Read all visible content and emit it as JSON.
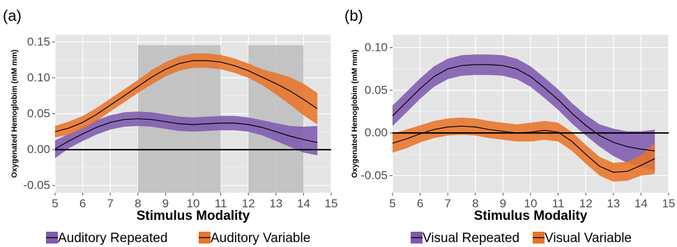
{
  "chart_data": [
    {
      "type": "line",
      "panel_label": "(a)",
      "xlabel": "Stimulus Modality",
      "ylabel": "Oxygenated Hemoglobim (mM mm)",
      "xlim": [
        5,
        15
      ],
      "ylim": [
        -0.06,
        0.16
      ],
      "x_ticks": [
        5,
        6,
        7,
        8,
        9,
        10,
        11,
        12,
        13,
        14,
        15
      ],
      "y_ticks": [
        -0.05,
        0.0,
        0.05,
        0.1,
        0.15
      ],
      "y_tick_labels": [
        "-0.05",
        "0.00",
        "0.05",
        "0.10",
        "0.15"
      ],
      "background": "#e5e5e5",
      "grid": true,
      "zero_line": true,
      "shaded_regions": [
        [
          8,
          11
        ],
        [
          12,
          14
        ]
      ],
      "shaded_color": "#bdbdbd",
      "legend_position": "bottom",
      "series": [
        {
          "name": "Auditory Repeated",
          "color": "#7e5aaf",
          "x": [
            5,
            5.5,
            6,
            6.5,
            7,
            7.5,
            8,
            8.5,
            9,
            9.5,
            10,
            10.5,
            11,
            11.5,
            12,
            12.5,
            13,
            13.5,
            14,
            14.5
          ],
          "y": [
            0.001,
            0.012,
            0.022,
            0.031,
            0.038,
            0.042,
            0.043,
            0.042,
            0.039,
            0.036,
            0.035,
            0.036,
            0.037,
            0.037,
            0.035,
            0.031,
            0.025,
            0.019,
            0.014,
            0.01
          ],
          "lower": [
            -0.012,
            0.002,
            0.012,
            0.021,
            0.028,
            0.032,
            0.033,
            0.032,
            0.029,
            0.026,
            0.025,
            0.026,
            0.027,
            0.027,
            0.025,
            0.02,
            0.012,
            0.004,
            -0.004,
            -0.008
          ],
          "upper": [
            0.013,
            0.022,
            0.032,
            0.041,
            0.048,
            0.052,
            0.053,
            0.052,
            0.049,
            0.046,
            0.045,
            0.046,
            0.047,
            0.047,
            0.045,
            0.041,
            0.037,
            0.033,
            0.032,
            0.033
          ]
        },
        {
          "name": "Auditory Variable",
          "color": "#e8742a",
          "x": [
            5,
            5.5,
            6,
            6.5,
            7,
            7.5,
            8,
            8.5,
            9,
            9.5,
            10,
            10.5,
            11,
            11.5,
            12,
            12.5,
            13,
            13.5,
            14,
            14.5
          ],
          "y": [
            0.025,
            0.03,
            0.038,
            0.049,
            0.062,
            0.075,
            0.088,
            0.101,
            0.112,
            0.12,
            0.124,
            0.124,
            0.122,
            0.117,
            0.11,
            0.101,
            0.092,
            0.082,
            0.07,
            0.057
          ],
          "lower": [
            0.017,
            0.021,
            0.029,
            0.04,
            0.053,
            0.066,
            0.079,
            0.091,
            0.102,
            0.11,
            0.114,
            0.114,
            0.112,
            0.107,
            0.1,
            0.09,
            0.077,
            0.063,
            0.048,
            0.035
          ],
          "upper": [
            0.033,
            0.039,
            0.047,
            0.058,
            0.071,
            0.084,
            0.097,
            0.111,
            0.122,
            0.13,
            0.134,
            0.134,
            0.132,
            0.127,
            0.12,
            0.112,
            0.107,
            0.101,
            0.092,
            0.079
          ]
        }
      ]
    },
    {
      "type": "line",
      "panel_label": "(b)",
      "xlabel": "Stimulus Modality",
      "ylabel": "Oxygenated Hemoglobim (mM mm)",
      "xlim": [
        5,
        15
      ],
      "ylim": [
        -0.07,
        0.115
      ],
      "x_ticks": [
        5,
        6,
        7,
        8,
        9,
        10,
        11,
        12,
        13,
        14,
        15
      ],
      "y_ticks": [
        -0.05,
        0.0,
        0.05,
        0.1
      ],
      "y_tick_labels": [
        "-0.05",
        "0.00",
        "0.05",
        "0.10"
      ],
      "background": "#e5e5e5",
      "grid": true,
      "zero_line": true,
      "shaded_regions": [],
      "legend_position": "bottom",
      "series": [
        {
          "name": "Visual Repeated",
          "color": "#7e5aaf",
          "x": [
            5,
            5.5,
            6,
            6.5,
            7,
            7.5,
            8,
            8.5,
            9,
            9.5,
            10,
            10.5,
            11,
            11.5,
            12,
            12.5,
            13,
            13.5,
            14,
            14.5
          ],
          "y": [
            0.02,
            0.036,
            0.052,
            0.066,
            0.075,
            0.079,
            0.08,
            0.08,
            0.079,
            0.075,
            0.066,
            0.053,
            0.039,
            0.023,
            0.009,
            -0.003,
            -0.011,
            -0.016,
            -0.019,
            -0.021
          ],
          "lower": [
            0.008,
            0.024,
            0.04,
            0.054,
            0.063,
            0.067,
            0.068,
            0.068,
            0.067,
            0.063,
            0.054,
            0.041,
            0.027,
            0.011,
            -0.003,
            -0.016,
            -0.027,
            -0.035,
            -0.04,
            -0.044
          ],
          "upper": [
            0.032,
            0.048,
            0.064,
            0.078,
            0.087,
            0.091,
            0.092,
            0.092,
            0.091,
            0.087,
            0.078,
            0.065,
            0.051,
            0.035,
            0.021,
            0.01,
            0.005,
            0.002,
            0.002,
            0.004
          ]
        },
        {
          "name": "Visual Variable",
          "color": "#e8742a",
          "x": [
            5,
            5.5,
            6,
            6.5,
            7,
            7.5,
            8,
            8.5,
            9,
            9.5,
            10,
            10.5,
            11,
            11.5,
            12,
            12.5,
            13,
            13.5,
            14,
            14.5
          ],
          "y": [
            -0.012,
            -0.007,
            -0.001,
            0.004,
            0.007,
            0.008,
            0.007,
            0.004,
            0.002,
            0.0,
            0.001,
            0.003,
            0.001,
            -0.01,
            -0.025,
            -0.039,
            -0.046,
            -0.045,
            -0.038,
            -0.03
          ],
          "lower": [
            -0.023,
            -0.018,
            -0.011,
            -0.006,
            -0.003,
            -0.002,
            -0.003,
            -0.006,
            -0.008,
            -0.01,
            -0.01,
            -0.008,
            -0.01,
            -0.021,
            -0.036,
            -0.05,
            -0.057,
            -0.056,
            -0.05,
            -0.048
          ],
          "upper": [
            -0.001,
            0.004,
            0.009,
            0.014,
            0.017,
            0.018,
            0.017,
            0.014,
            0.012,
            0.01,
            0.012,
            0.014,
            0.012,
            0.001,
            -0.014,
            -0.028,
            -0.035,
            -0.034,
            -0.026,
            -0.012
          ]
        }
      ]
    }
  ]
}
